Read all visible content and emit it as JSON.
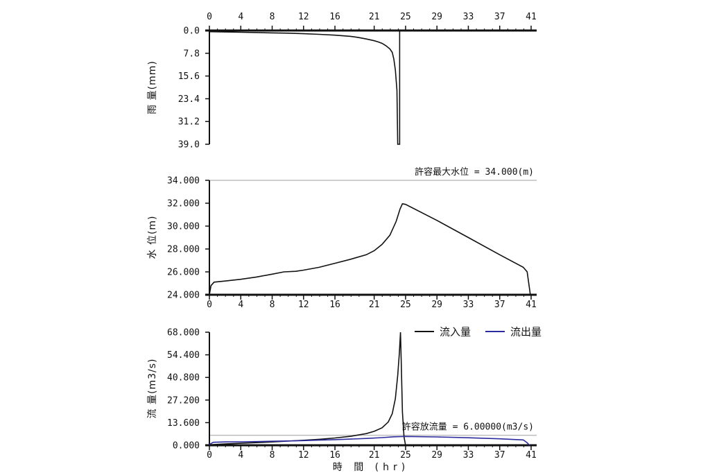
{
  "chart_data": [
    {
      "type": "bar",
      "id": "rain",
      "ylabel": "雨 量(mm)",
      "yticks": [
        "0.0",
        "7.8",
        "15.6",
        "23.4",
        "31.2",
        "39.0"
      ],
      "ylim": [
        0,
        39
      ],
      "y_inverted": true,
      "xticks": [
        "0",
        "4",
        "8",
        "12",
        "16",
        "21",
        "25",
        "29",
        "33",
        "37",
        "41"
      ],
      "xlim": [
        0,
        41
      ],
      "series": [
        {
          "name": "",
          "color": "#111111",
          "points": [
            [
              0,
              0.4
            ],
            [
              2,
              0.5
            ],
            [
              4,
              0.6
            ],
            [
              6,
              0.7
            ],
            [
              8,
              0.8
            ],
            [
              10,
              0.9
            ],
            [
              12,
              1.1
            ],
            [
              14,
              1.3
            ],
            [
              16,
              1.6
            ],
            [
              18,
              2.0
            ],
            [
              19,
              2.4
            ],
            [
              20,
              2.9
            ],
            [
              21,
              3.5
            ],
            [
              21.5,
              3.9
            ],
            [
              22,
              4.4
            ],
            [
              22.5,
              5.2
            ],
            [
              23,
              6.3
            ],
            [
              23.3,
              7.5
            ],
            [
              23.5,
              9.8
            ],
            [
              23.7,
              13.5
            ],
            [
              23.9,
              20.5
            ],
            [
              24.0,
              39.0
            ],
            [
              24.25,
              39.0
            ],
            [
              24.25,
              0.0
            ],
            [
              41,
              0.0
            ]
          ]
        }
      ]
    },
    {
      "type": "line",
      "id": "water-level",
      "ylabel": "水 位(m)",
      "yticks": [
        "24.000",
        "26.000",
        "28.000",
        "30.000",
        "32.000",
        "34.000"
      ],
      "ylim": [
        24,
        34
      ],
      "xticks": [
        "0",
        "4",
        "8",
        "12",
        "16",
        "21",
        "25",
        "29",
        "33",
        "37",
        "41"
      ],
      "xlim": [
        0,
        41
      ],
      "reference_line": {
        "value": 34,
        "label": "許容最大水位 = 34.000(m)",
        "color": "#bdbdbd"
      },
      "series": [
        {
          "name": "",
          "color": "#111111",
          "points": [
            [
              0,
              24.0
            ],
            [
              0.2,
              24.8
            ],
            [
              0.6,
              25.1
            ],
            [
              2,
              25.2
            ],
            [
              4,
              25.35
            ],
            [
              6,
              25.55
            ],
            [
              8,
              25.8
            ],
            [
              9.5,
              26.0
            ],
            [
              11,
              26.05
            ],
            [
              12,
              26.15
            ],
            [
              14,
              26.4
            ],
            [
              16,
              26.75
            ],
            [
              18,
              27.1
            ],
            [
              20,
              27.5
            ],
            [
              21,
              27.85
            ],
            [
              22,
              28.4
            ],
            [
              23,
              29.2
            ],
            [
              23.8,
              30.4
            ],
            [
              24.3,
              31.5
            ],
            [
              24.6,
              31.95
            ],
            [
              25,
              31.9
            ],
            [
              29,
              30.5
            ],
            [
              33,
              29.0
            ],
            [
              37,
              27.5
            ],
            [
              40,
              26.4
            ],
            [
              40.5,
              26.0
            ],
            [
              40.7,
              25.0
            ],
            [
              40.9,
              24.0
            ]
          ]
        }
      ]
    },
    {
      "type": "line",
      "id": "flow",
      "ylabel": "流 量(m3/s)",
      "xlabel": "時 間 (hr)",
      "yticks": [
        "0.000",
        "13.600",
        "27.200",
        "40.800",
        "54.400",
        "68.000"
      ],
      "ylim": [
        0,
        68
      ],
      "xticks": [
        "0",
        "4",
        "8",
        "12",
        "16",
        "21",
        "25",
        "29",
        "33",
        "37",
        "41"
      ],
      "xlim": [
        0,
        41
      ],
      "legend_position": "top-right",
      "reference_line": {
        "value": 6,
        "label": "許容放流量 = 6.00000(m3/s)",
        "color": "#bdbdbd"
      },
      "series": [
        {
          "name": "流入量",
          "color": "#111111",
          "points": [
            [
              0,
              0.3
            ],
            [
              2,
              0.8
            ],
            [
              4,
              1.2
            ],
            [
              6,
              1.6
            ],
            [
              8,
              2.0
            ],
            [
              10,
              2.5
            ],
            [
              12,
              3.0
            ],
            [
              14,
              3.6
            ],
            [
              16,
              4.4
            ],
            [
              18,
              5.4
            ],
            [
              20,
              7.0
            ],
            [
              21,
              8.4
            ],
            [
              22,
              10.5
            ],
            [
              22.8,
              14.0
            ],
            [
              23.3,
              19.0
            ],
            [
              23.7,
              28.0
            ],
            [
              24.0,
              42.0
            ],
            [
              24.2,
              55.0
            ],
            [
              24.35,
              68.0
            ],
            [
              24.45,
              50.0
            ],
            [
              24.6,
              20.0
            ],
            [
              24.8,
              5.0
            ],
            [
              25,
              0.0
            ],
            [
              41,
              0.0
            ]
          ]
        },
        {
          "name": "流出量",
          "color": "#2b2b9e",
          "points": [
            [
              0,
              0.5
            ],
            [
              0.5,
              1.8
            ],
            [
              2,
              2.0
            ],
            [
              4,
              2.1
            ],
            [
              6,
              2.2
            ],
            [
              8,
              2.4
            ],
            [
              10,
              2.6
            ],
            [
              12,
              2.8
            ],
            [
              14,
              3.1
            ],
            [
              16,
              3.4
            ],
            [
              18,
              3.7
            ],
            [
              20,
              4.1
            ],
            [
              22,
              4.6
            ],
            [
              23.5,
              5.1
            ],
            [
              24.5,
              5.2
            ],
            [
              25,
              5.3
            ],
            [
              29,
              5.0
            ],
            [
              33,
              4.5
            ],
            [
              37,
              3.9
            ],
            [
              40,
              3.2
            ],
            [
              40.5,
              1.5
            ],
            [
              40.8,
              0.0
            ]
          ]
        }
      ]
    }
  ]
}
